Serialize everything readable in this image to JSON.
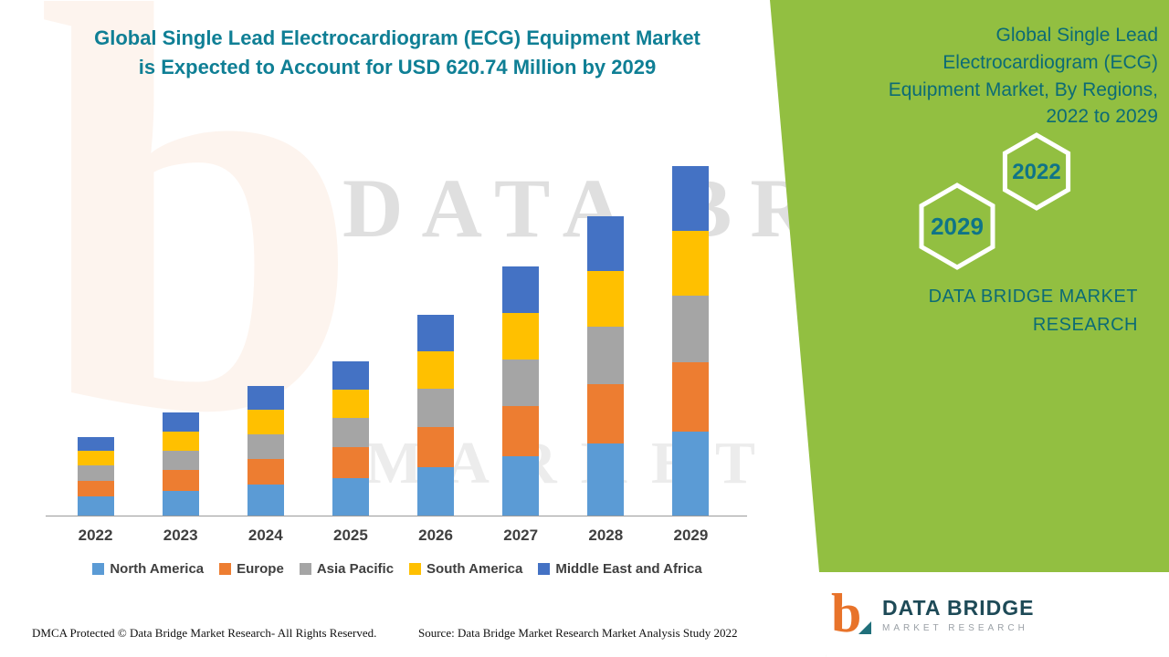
{
  "title": {
    "line1": "Global Single Lead Electrocardiogram (ECG) Equipment Market",
    "line2": "is Expected to Account for USD 620.74 Million by 2029"
  },
  "side_panel": {
    "heading_lines": [
      "Global Single Lead",
      "Electrocardiogram (ECG)",
      "Equipment Market, By Regions,",
      "2022 to 2029"
    ],
    "hexagons": [
      {
        "year": "2022"
      },
      {
        "year": "2029"
      }
    ],
    "brand_line1": "DATA BRIDGE MARKET",
    "brand_line2": "RESEARCH",
    "background_color": "#92BF41"
  },
  "watermark": {
    "logo_glyph": "b",
    "line1": "DATA BRIDGE",
    "line2": "MARKET RESEARCH"
  },
  "footer": {
    "dmca": "DMCA Protected © Data Bridge Market Research- All Rights Reserved.",
    "source": "Source: Data Bridge Market Research Market Analysis Study 2022"
  },
  "logo": {
    "glyph": "b",
    "name": "DATA BRIDGE",
    "tagline": "MARKET RESEARCH"
  },
  "chart_data": {
    "type": "bar",
    "stacked": true,
    "title": "Global Single Lead Electrocardiogram (ECG) Equipment Market, By Regions, 2022 to 2029",
    "unit": "USD Million",
    "categories": [
      "2022",
      "2023",
      "2024",
      "2025",
      "2026",
      "2027",
      "2028",
      "2029"
    ],
    "series": [
      {
        "name": "North America",
        "color": "#5B9BD5",
        "values": [
          34,
          44,
          55,
          66,
          86,
          106,
          128,
          149
        ]
      },
      {
        "name": "Europe",
        "color": "#ED7D31",
        "values": [
          28,
          37,
          46,
          55,
          71,
          88,
          106,
          124
        ]
      },
      {
        "name": "Asia Pacific",
        "color": "#A5A5A5",
        "values": [
          27,
          35,
          44,
          52,
          68,
          84,
          101,
          118
        ]
      },
      {
        "name": "South America",
        "color": "#FFC000",
        "values": [
          26,
          34,
          43,
          51,
          66,
          82,
          99,
          115
        ]
      },
      {
        "name": "Middle East and Africa",
        "color": "#4472C4",
        "values": [
          25,
          33,
          42,
          50,
          66,
          82,
          98,
          114.74
        ]
      }
    ],
    "highlight_value": "USD 620.74 Million by 2029",
    "ylim": [
      0,
      650
    ],
    "grid": false,
    "legend_position": "bottom"
  }
}
